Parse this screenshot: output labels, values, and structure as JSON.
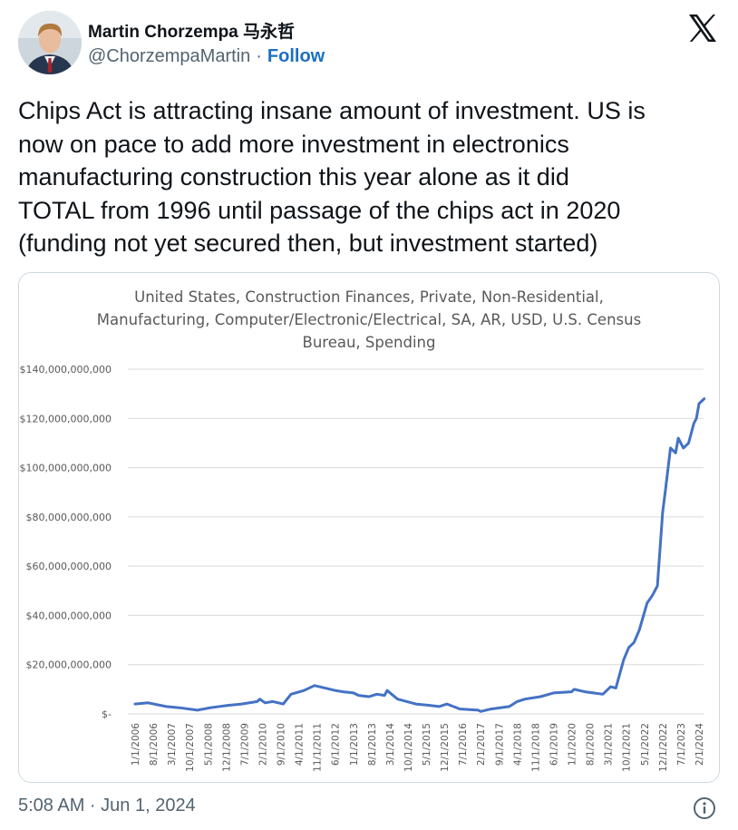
{
  "header": {
    "display_name": "Martin Chorzempa 马永哲",
    "handle": "@ChorzempaMartin",
    "separator": "·",
    "follow_label": "Follow"
  },
  "tweet": {
    "text": "Chips Act is attracting insane amount of investment. US is\nnow on pace to add more investment in electronics\nmanufacturing construction this year alone as it did\nTOTAL from 1996 until passage of the chips act in 2020\n(funding not yet secured then, but investment started)"
  },
  "footer": {
    "timestamp": "5:08 AM · Jun 1, 2024"
  },
  "icons": {
    "brand": "x-logo-icon",
    "info": "info-icon"
  },
  "colors": {
    "link": "#1d6fc2",
    "series": "#4472c4"
  },
  "chart_data": {
    "type": "line",
    "title": "United States, Construction Finances, Private, Non-Residential,\nManufacturing, Computer/Electronic/Electrical, SA, AR, USD, U.S. Census\nBureau, Spending",
    "xlabel": "",
    "ylabel": "",
    "ylim": [
      0,
      140000000000
    ],
    "grid": true,
    "legend": "none",
    "y_tick_labels": [
      "$-",
      "$20,000,000,000",
      "$40,000,000,000",
      "$60,000,000,000",
      "$80,000,000,000",
      "$100,000,000,000",
      "$120,000,000,000",
      "$140,000,000,000"
    ],
    "x_tick_labels": [
      "1/1/2006",
      "8/1/2006",
      "3/1/2007",
      "10/1/2007",
      "5/1/2008",
      "12/1/2008",
      "7/1/2009",
      "2/1/2010",
      "9/1/2010",
      "4/1/2011",
      "11/1/2011",
      "6/1/2012",
      "1/1/2013",
      "8/1/2013",
      "3/1/2014",
      "10/1/2014",
      "5/1/2015",
      "12/1/2015",
      "7/1/2016",
      "2/1/2017",
      "9/1/2017",
      "4/1/2018",
      "11/1/2018",
      "6/1/2019",
      "1/1/2020",
      "8/1/2020",
      "3/1/2021",
      "10/1/2021",
      "5/1/2022",
      "12/1/2022",
      "7/1/2023",
      "2/1/2024"
    ],
    "series": [
      {
        "x": [
          "2006-01",
          "2006-06",
          "2007-01",
          "2007-06",
          "2008-01",
          "2008-06",
          "2009-01",
          "2009-06",
          "2009-12",
          "2010-01",
          "2010-03",
          "2010-06",
          "2010-10",
          "2011-01",
          "2011-06",
          "2011-10",
          "2011-12",
          "2012-06",
          "2012-09",
          "2013-01",
          "2013-03",
          "2013-07",
          "2013-10",
          "2014-01",
          "2014-02",
          "2014-06",
          "2015-01",
          "2015-06",
          "2015-10",
          "2016-01",
          "2016-06",
          "2017-01",
          "2017-02",
          "2017-06",
          "2018-01",
          "2018-04",
          "2018-07",
          "2019-01",
          "2019-06",
          "2020-01",
          "2020-02",
          "2020-06",
          "2021-01",
          "2021-04",
          "2021-06",
          "2021-09",
          "2021-11",
          "2022-01",
          "2022-03",
          "2022-06",
          "2022-08",
          "2022-10",
          "2022-12",
          "2023-01",
          "2023-03",
          "2023-05",
          "2023-06",
          "2023-08",
          "2023-10",
          "2023-12",
          "2024-01",
          "2024-02",
          "2024-04"
        ],
        "y": [
          4000000000,
          4500000000,
          3000000000,
          2500000000,
          1500000000,
          2500000000,
          3500000000,
          4000000000,
          5000000000,
          6000000000,
          4500000000,
          5000000000,
          4000000000,
          8000000000,
          9500000000,
          11500000000,
          11000000000,
          9500000000,
          9000000000,
          8500000000,
          7500000000,
          7000000000,
          8000000000,
          7500000000,
          9500000000,
          6000000000,
          4000000000,
          3500000000,
          3000000000,
          4000000000,
          2000000000,
          1500000000,
          1000000000,
          2000000000,
          3000000000,
          5000000000,
          6000000000,
          7000000000,
          8500000000,
          9000000000,
          10000000000,
          9000000000,
          8000000000,
          11000000000,
          10500000000,
          22000000000,
          27000000000,
          29000000000,
          34000000000,
          45000000000,
          48000000000,
          52000000000,
          82000000000,
          90000000000,
          108000000000,
          106000000000,
          112000000000,
          108000000000,
          110000000000,
          118000000000,
          120000000000,
          126000000000,
          128000000000
        ]
      }
    ]
  }
}
